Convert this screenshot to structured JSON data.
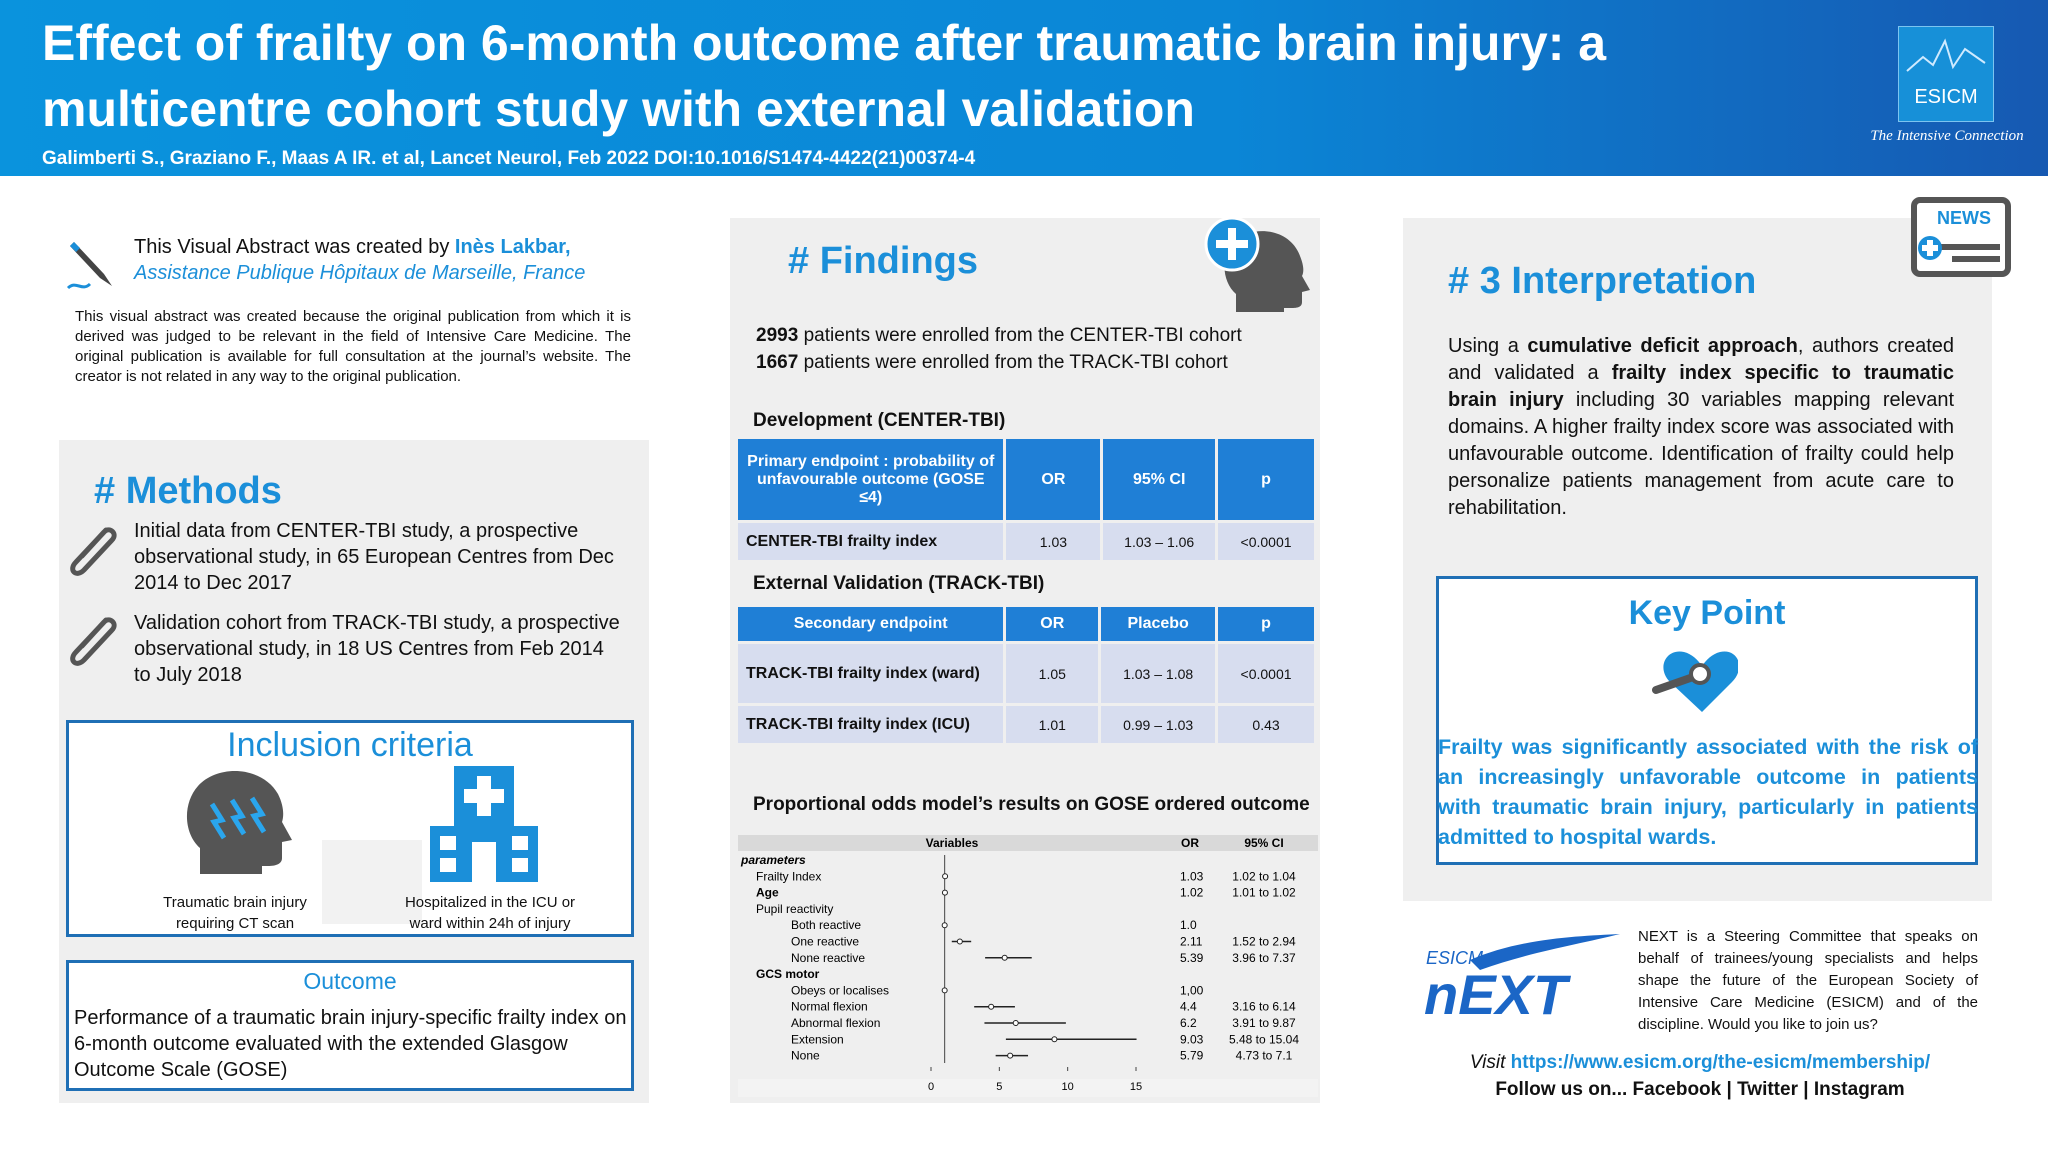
{
  "header": {
    "title_line1": "Effect of frailty on 6-month outcome after traumatic brain injury: a",
    "title_line2": "multicentre cohort study with external validation",
    "citation": "Galimberti S., Graziano F., Maas A IR. et al, Lancet Neurol, Feb 2022 DOI:10.1016/S1474-4422(21)00374-4",
    "logo": "ESICM",
    "tagline": "The Intensive Connection"
  },
  "credit": {
    "created_by": "This Visual Abstract was created by",
    "author": "Inès Lakbar,",
    "affiliation": "Assistance Publique Hôpitaux de Marseille, France",
    "disclaimer": "This visual abstract was created because the original publication from which it is derived was judged to be relevant in the field of Intensive Care Medicine. The original publication is available for full consultation at the journal’s website. The creator is not related in any way to the original publication."
  },
  "methods": {
    "heading": "# Methods",
    "items": [
      "Initial data from CENTER-TBI study, a prospective observational study, in 65 European Centres from Dec 2014 to Dec 2017",
      "Validation cohort from TRACK-TBI study, a prospective observational study, in 18 US Centres from Feb 2014 to July 2018"
    ],
    "inclusion": {
      "heading": "Inclusion criteria",
      "items": [
        "Traumatic brain injury requiring CT scan",
        "Hospitalized in the ICU or ward within 24h of injury"
      ]
    },
    "outcome": {
      "heading": "Outcome",
      "text": "Performance of a traumatic brain injury-specific frailty index on 6-month outcome evaluated with the extended Glasgow Outcome Scale (GOSE)"
    }
  },
  "findings": {
    "heading": "# Findings",
    "enrolled": [
      {
        "count": "2993",
        "text": "patients were enrolled from the CENTER-TBI cohort"
      },
      {
        "count": "1667",
        "text": "patients were enrolled from the TRACK-TBI cohort"
      }
    ],
    "development": {
      "heading": "Development (CENTER-TBI)",
      "header": [
        "Primary endpoint : probability of unfavourable outcome (GOSE ≤4)",
        "OR",
        "95% CI",
        "p"
      ],
      "rows": [
        [
          "CENTER-TBI frailty index",
          "1.03",
          "1.03 – 1.06",
          "<0.0001"
        ]
      ]
    },
    "validation": {
      "heading": "External Validation (TRACK-TBI)",
      "header": [
        "Secondary endpoint",
        "OR",
        "Placebo",
        "p"
      ],
      "rows": [
        [
          "TRACK-TBI frailty index (ward)",
          "1.05",
          "1.03 – 1.08",
          "<0.0001"
        ],
        [
          "TRACK-TBI frailty index (ICU)",
          "1.01",
          "0.99 – 1.03",
          "0.43"
        ]
      ]
    },
    "forest": {
      "type": "forest",
      "title": "Proportional odds model’s results on GOSE ordered outcome",
      "columns": [
        "Variables",
        "OR",
        "95% CI"
      ],
      "xlim": [
        0,
        15
      ],
      "xticks": [
        0,
        5,
        10,
        15
      ],
      "reference": 1,
      "rows": [
        {
          "name": "parameters"
        },
        {
          "name": "Frailty Index",
          "or": 1.03,
          "ci": {
            "low": 1.02,
            "high": 1.04,
            "label": "1.02 to 1.04"
          }
        },
        {
          "name": "Age",
          "or": 1.02,
          "ci": {
            "low": 1.01,
            "high": 1.02,
            "label": "1.01 to 1.02"
          }
        },
        {
          "name": "Pupil reactivity"
        },
        {
          "name": "Both reactive",
          "or": {
            "value": 1,
            "label": "1.0"
          }
        },
        {
          "name": "One reactive",
          "or": 2.11,
          "ci": {
            "low": 1.52,
            "high": 2.94,
            "label": "1.52 to 2.94"
          }
        },
        {
          "name": "None reactive",
          "or": 5.39,
          "ci": {
            "low": 3.96,
            "high": 7.37,
            "label": "3.96 to 7.37"
          }
        },
        {
          "name": "GCS motor"
        },
        {
          "name": "Obeys or localises",
          "or": {
            "value": 1,
            "label": "1,00"
          }
        },
        {
          "name": "Normal flexion",
          "or": 4.4,
          "ci": {
            "low": 3.16,
            "high": 6.14,
            "label": "3.16 to 6.14"
          }
        },
        {
          "name": "Abnormal flexion",
          "or": 6.2,
          "ci": {
            "low": 3.91,
            "high": 9.87,
            "label": "3.91 to 9.87"
          }
        },
        {
          "name": "Extension",
          "or": 9.03,
          "ci": {
            "low": 5.48,
            "high": 15.04,
            "label": "5.48 to 15.04"
          }
        },
        {
          "name": "None",
          "or": 5.79,
          "ci": {
            "low": 4.73,
            "high": 7.1,
            "label": "4.73 to 7.1"
          }
        }
      ]
    }
  },
  "interpretation": {
    "heading": "# 3 Interpretation",
    "text": [
      "Using a ",
      "cumulative deficit approach",
      ", authors created and validated a ",
      "frailty index specific to traumatic brain injury",
      " including 30 variables mapping relevant domains. A higher frailty index score was associated with unfavourable outcome. Identification of frailty could help personalize patients management from acute care to rehabilitation."
    ],
    "news": "NEWS"
  },
  "key_point": {
    "heading": "Key Point",
    "text": "Frailty was significantly associated with the risk of an increasingly unfavorable outcome in patients with traumatic brain injury, particularly in patients admitted to hospital wards."
  },
  "next": {
    "logo_top": "ESICM",
    "logo": "nEXT",
    "text": "NEXT is a Steering Committee that speaks on behalf of trainees/young specialists and helps shape the future of the European Society of Intensive Care Medicine (ESICM) and of the discipline. Would you like to join us?",
    "visit": "Visit",
    "url": "https://www.esicm.org/the-esicm/membership/",
    "follow": "Follow us on... Facebook | Twitter | Instagram"
  }
}
